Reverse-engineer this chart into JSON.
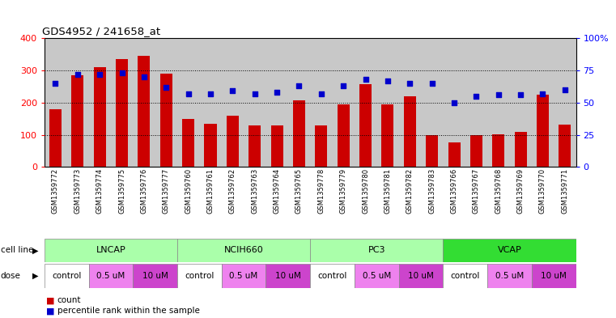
{
  "title": "GDS4952 / 241658_at",
  "samples": [
    "GSM1359772",
    "GSM1359773",
    "GSM1359774",
    "GSM1359775",
    "GSM1359776",
    "GSM1359777",
    "GSM1359760",
    "GSM1359761",
    "GSM1359762",
    "GSM1359763",
    "GSM1359764",
    "GSM1359765",
    "GSM1359778",
    "GSM1359779",
    "GSM1359780",
    "GSM1359781",
    "GSM1359782",
    "GSM1359783",
    "GSM1359766",
    "GSM1359767",
    "GSM1359768",
    "GSM1359769",
    "GSM1359770",
    "GSM1359771"
  ],
  "counts": [
    178,
    285,
    310,
    335,
    345,
    290,
    150,
    135,
    160,
    128,
    130,
    207,
    130,
    195,
    258,
    195,
    220,
    100,
    75,
    100,
    102,
    110,
    225,
    132
  ],
  "percentiles": [
    65,
    72,
    72,
    73,
    70,
    62,
    57,
    57,
    59,
    57,
    58,
    63,
    57,
    63,
    68,
    67,
    65,
    65,
    50,
    55,
    56,
    56,
    57,
    60
  ],
  "bar_color": "#CC0000",
  "dot_color": "#0000CC",
  "ylim_left": [
    0,
    400
  ],
  "ylim_right": [
    0,
    100
  ],
  "yticks_left": [
    0,
    100,
    200,
    300,
    400
  ],
  "yticks_right": [
    0,
    25,
    50,
    75,
    100
  ],
  "yticklabels_right": [
    "0",
    "25",
    "50",
    "75",
    "100%"
  ],
  "cell_line_data": [
    {
      "name": "LNCAP",
      "start": 0,
      "end": 6,
      "color": "#AAFFAA"
    },
    {
      "name": "NCIH660",
      "start": 6,
      "end": 12,
      "color": "#AAFFAA"
    },
    {
      "name": "PC3",
      "start": 12,
      "end": 18,
      "color": "#AAFFAA"
    },
    {
      "name": "VCAP",
      "start": 18,
      "end": 24,
      "color": "#33DD33"
    }
  ],
  "dose_layout": [
    {
      "label": "control",
      "start": 0,
      "end": 2,
      "color": "#FFFFFF"
    },
    {
      "label": "0.5 uM",
      "start": 2,
      "end": 4,
      "color": "#EE82EE"
    },
    {
      "label": "10 uM",
      "start": 4,
      "end": 6,
      "color": "#CC44CC"
    },
    {
      "label": "control",
      "start": 6,
      "end": 8,
      "color": "#FFFFFF"
    },
    {
      "label": "0.5 uM",
      "start": 8,
      "end": 10,
      "color": "#EE82EE"
    },
    {
      "label": "10 uM",
      "start": 10,
      "end": 12,
      "color": "#CC44CC"
    },
    {
      "label": "control",
      "start": 12,
      "end": 14,
      "color": "#FFFFFF"
    },
    {
      "label": "0.5 uM",
      "start": 14,
      "end": 16,
      "color": "#EE82EE"
    },
    {
      "label": "10 uM",
      "start": 16,
      "end": 18,
      "color": "#CC44CC"
    },
    {
      "label": "control",
      "start": 18,
      "end": 20,
      "color": "#FFFFFF"
    },
    {
      "label": "0.5 uM",
      "start": 20,
      "end": 22,
      "color": "#EE82EE"
    },
    {
      "label": "10 uM",
      "start": 22,
      "end": 24,
      "color": "#CC44CC"
    }
  ],
  "legend_count_color": "#CC0000",
  "legend_dot_color": "#0000CC",
  "tick_bg_color": "#C8C8C8"
}
